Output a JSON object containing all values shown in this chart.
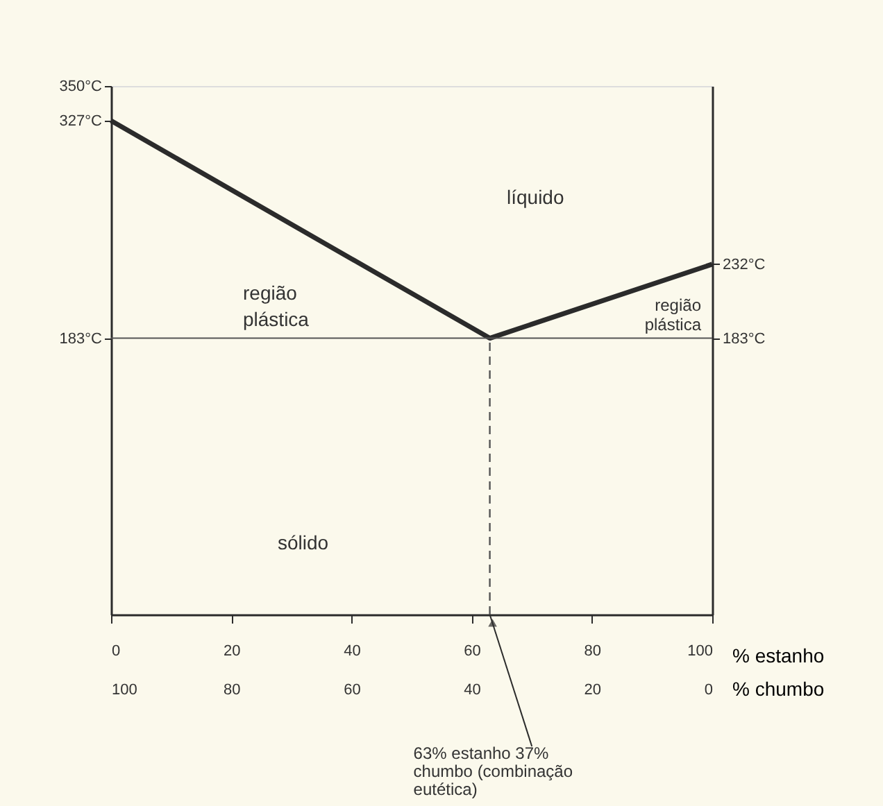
{
  "chart_data": {
    "type": "line",
    "xlabel": "% estanho",
    "x2label": "% chumbo",
    "xlim": [
      0,
      100
    ],
    "xticks": [
      0,
      20,
      40,
      60,
      80,
      100
    ],
    "x2lim": [
      100,
      0
    ],
    "x2ticks": [
      100,
      80,
      60,
      40,
      20,
      0
    ],
    "ylim": [
      0,
      350
    ],
    "yticks": [
      {
        "value": 183,
        "label": "183°C"
      },
      {
        "value": 327,
        "label": "327°C"
      },
      {
        "value": 350,
        "label": "350°C"
      }
    ],
    "y2lim": [
      0,
      350
    ],
    "y2ticks": [
      {
        "value": 183,
        "label": "183°C"
      },
      {
        "value": 232,
        "label": "232°C"
      }
    ],
    "series": [
      {
        "x": [
          0,
          63,
          100
        ],
        "values": [
          327,
          183,
          232
        ],
        "color": "#2b2b2b",
        "line_style": "solid"
      },
      {
        "x": [
          63,
          63
        ],
        "values": [
          0,
          183
        ],
        "color": "#555555",
        "line_style": "dashed"
      }
    ],
    "ref_lines": [
      {
        "axis": "y",
        "value": 183,
        "label": null,
        "color": "#555555",
        "line_style": "solid"
      }
    ],
    "annotations": [
      "líquido",
      "região plástica",
      "região plástica",
      "sólido",
      {
        "text": "63% estanho 37% chumbo (combinação eutética)",
        "x": 63,
        "y": 0
      }
    ]
  }
}
